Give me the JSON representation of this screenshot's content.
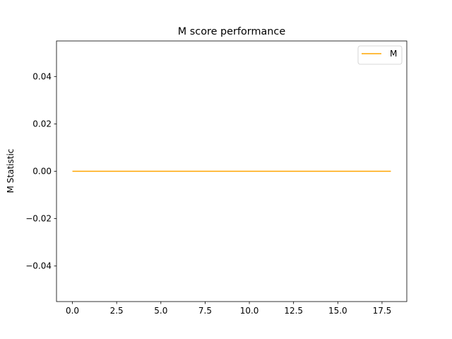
{
  "chart_data": {
    "type": "line",
    "title": "M score performance",
    "xlabel": "",
    "ylabel": "M Statistic",
    "xlim": [
      -0.9,
      18.9
    ],
    "ylim": [
      -0.055,
      0.055
    ],
    "x_ticks": [
      0.0,
      2.5,
      5.0,
      7.5,
      10.0,
      12.5,
      15.0,
      17.5
    ],
    "x_tick_labels": [
      "0.0",
      "2.5",
      "5.0",
      "7.5",
      "10.0",
      "12.5",
      "15.0",
      "17.5"
    ],
    "y_ticks": [
      -0.04,
      -0.02,
      0.0,
      0.02,
      0.04
    ],
    "y_tick_labels": [
      "−0.04",
      "−0.02",
      "0.00",
      "0.02",
      "0.04"
    ],
    "grid": false,
    "legend_position": "top-right",
    "series": [
      {
        "name": "M",
        "color": "#ffa500",
        "x": [
          0,
          1,
          2,
          3,
          4,
          5,
          6,
          7,
          8,
          9,
          10,
          11,
          12,
          13,
          14,
          15,
          16,
          17,
          18
        ],
        "values": [
          0,
          0,
          0,
          0,
          0,
          0,
          0,
          0,
          0,
          0,
          0,
          0,
          0,
          0,
          0,
          0,
          0,
          0,
          0
        ]
      }
    ]
  }
}
